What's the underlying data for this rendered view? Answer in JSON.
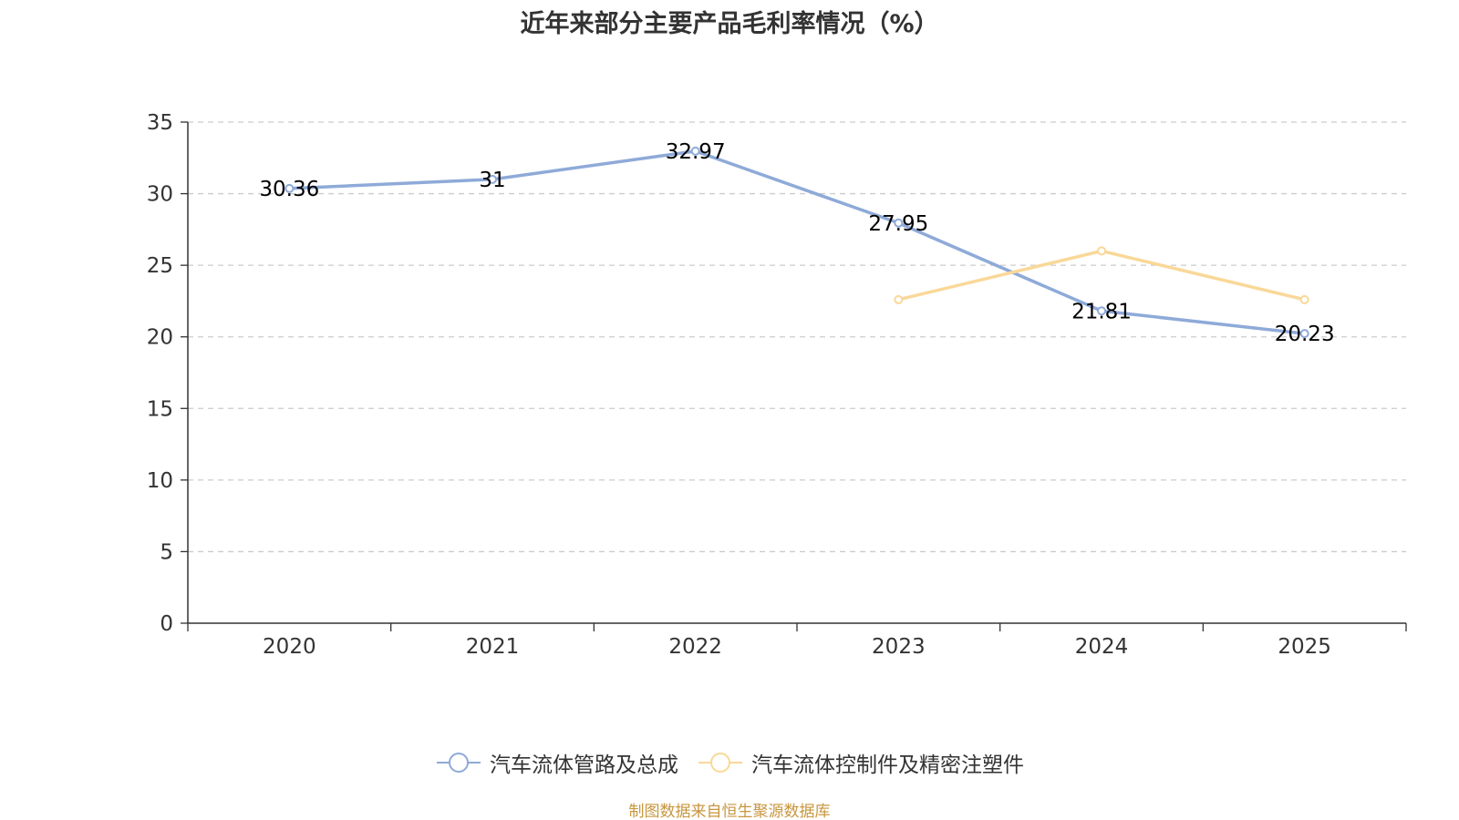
{
  "chart_data": {
    "type": "line",
    "title": "近年来部分主要产品毛利率情况（%）",
    "categories": [
      "2020",
      "2021",
      "2022",
      "2023",
      "2024",
      "2025"
    ],
    "ylim": [
      0,
      35
    ],
    "yticks": [
      0,
      5,
      10,
      15,
      20,
      25,
      30,
      35
    ],
    "grid": true,
    "legend_position": "bottom",
    "series": [
      {
        "name": "汽车流体管路及总成",
        "color": "#8eaad8",
        "values": [
          30.36,
          31,
          32.97,
          27.95,
          21.81,
          20.23
        ],
        "labels": [
          "30.36",
          "31",
          "32.97",
          "27.95",
          "21.81",
          "20.23"
        ],
        "show_labels": true
      },
      {
        "name": "汽车流体控制件及精密注塑件",
        "color": "#f9d898",
        "values": [
          null,
          null,
          null,
          22.6,
          26.0,
          22.6
        ],
        "show_labels": false
      }
    ]
  },
  "source": "制图数据来自恒生聚源数据库",
  "colors": {
    "axis": "#333333",
    "grid": "#cccccc",
    "source": "#c8963e"
  }
}
